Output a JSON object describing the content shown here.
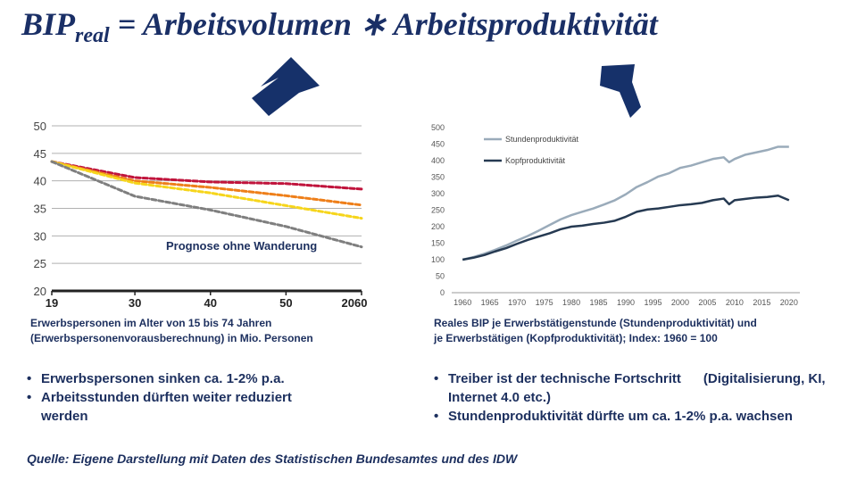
{
  "title": {
    "main": "BIP",
    "sub": "real",
    "rest": " = Arbeitsvolumen ∗ Arbeitsproduktivität"
  },
  "colors": {
    "navy": "#1c2f5e",
    "arrow": "#16316a",
    "red": "#c0143c",
    "orange": "#ee7f1a",
    "yellow": "#f6d51c",
    "gray": "#7f7f7f",
    "light": "#9aabba",
    "dark": "#263a52"
  },
  "chart_data": [
    {
      "type": "line",
      "x": [
        2019,
        2030,
        2040,
        2050,
        2060
      ],
      "xticks": [
        "19",
        "30",
        "40",
        "50",
        "2060"
      ],
      "yticks": [
        "20",
        "25",
        "30",
        "35",
        "40",
        "45",
        "50"
      ],
      "ylim": [
        20,
        50
      ],
      "xlim": [
        2019,
        2060
      ],
      "grid": true,
      "annotation": "Prognose ohne Wanderung",
      "series": [
        {
          "color": "#c0143c",
          "values": [
            43.5,
            40.6,
            39.8,
            39.5,
            38.5
          ]
        },
        {
          "color": "#ee7f1a",
          "values": [
            43.5,
            40.0,
            38.8,
            37.3,
            35.6
          ]
        },
        {
          "color": "#f6d51c",
          "values": [
            43.5,
            39.6,
            37.8,
            35.5,
            33.2
          ]
        },
        {
          "name": "Prognose ohne Wanderung",
          "color": "#7f7f7f",
          "values": [
            43.5,
            37.2,
            34.7,
            31.7,
            28.0
          ]
        }
      ]
    },
    {
      "type": "line",
      "x": [
        1960,
        1962,
        1964,
        1966,
        1968,
        1970,
        1972,
        1974,
        1976,
        1978,
        1980,
        1982,
        1984,
        1986,
        1988,
        1990,
        1992,
        1994,
        1996,
        1998,
        2000,
        2002,
        2004,
        2006,
        2008,
        2009,
        2010,
        2012,
        2014,
        2016,
        2018,
        2020
      ],
      "xticks": [
        "1960",
        "1965",
        "1970",
        "1975",
        "1980",
        "1985",
        "1990",
        "1995",
        "2000",
        "2005",
        "2010",
        "2015",
        "2020"
      ],
      "yticks": [
        "0",
        "50",
        "100",
        "150",
        "200",
        "250",
        "300",
        "350",
        "400",
        "450",
        "500"
      ],
      "ylim": [
        0,
        500
      ],
      "xlim": [
        1958,
        2022
      ],
      "legend": "top-left",
      "series": [
        {
          "name": "Stundenproduktivität",
          "color": "#9aabba",
          "values": [
            100,
            108,
            118,
            130,
            143,
            158,
            172,
            188,
            205,
            222,
            235,
            245,
            255,
            267,
            280,
            298,
            320,
            335,
            352,
            362,
            378,
            385,
            395,
            405,
            410,
            395,
            405,
            418,
            425,
            432,
            442,
            442
          ]
        },
        {
          "name": "Kopfproduktivität",
          "color": "#263a52",
          "values": [
            100,
            106,
            114,
            125,
            135,
            148,
            160,
            170,
            180,
            192,
            200,
            203,
            208,
            212,
            218,
            230,
            245,
            252,
            255,
            260,
            265,
            268,
            272,
            280,
            285,
            268,
            280,
            284,
            288,
            290,
            294,
            280
          ]
        }
      ]
    }
  ],
  "left_caption": [
    "Erwerbspersonen im Alter von 15 bis 74 Jahren",
    "(Erwerbspersonenvorausberechnung) in Mio. Personen"
  ],
  "right_caption": [
    "Reales BIP je Erwerbstätigenstunde (Stundenproduktivität) und",
    "je Erwerbstätigen (Kopfproduktivität); Index: 1960 = 100"
  ],
  "left_bullets": [
    "Erwerbspersonen sinken ca. 1-2% p.a.",
    "Arbeitsstunden dürften weiter reduziert werden"
  ],
  "right_bullets": [
    "Treiber ist der technische Fortschritt      (Digitalisierung, KI, Internet 4.0 etc.)",
    "Stundenproduktivität dürfte um ca. 1-2% p.a. wachsen"
  ],
  "source": "Quelle: Eigene Darstellung mit Daten des Statistischen Bundesamtes und des IDW"
}
